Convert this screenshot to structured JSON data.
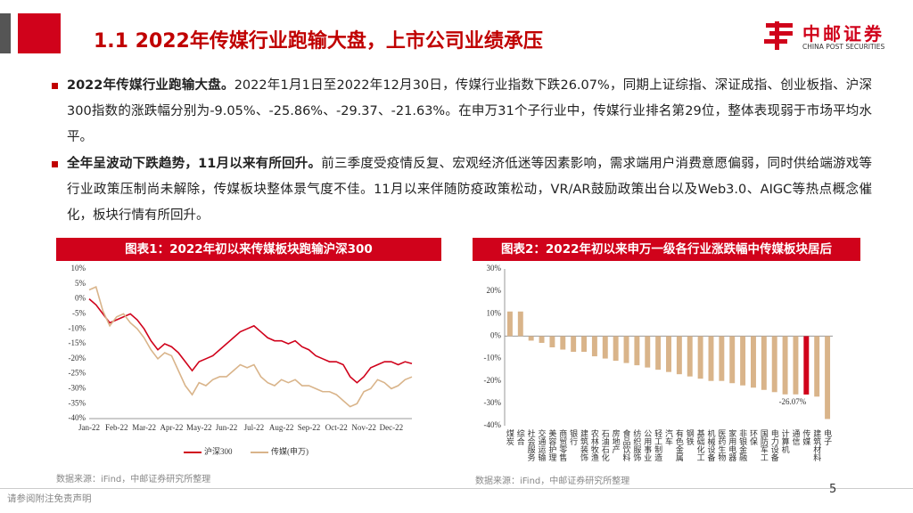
{
  "header": {
    "title": "1.1 2022年传媒行业跑输大盘，上市公司业绩承压",
    "logo_name": "中邮证券",
    "logo_sub": "CHINA POST SECURITIES"
  },
  "bullets": [
    {
      "bold": "2022年传媒行业跑输大盘。",
      "text": "2022年1月1日至2022年12月30日，传媒行业指数下跌26.07%，同期上证综指、深证成指、创业板指、沪深300指数的涨跌幅分别为-9.05%、-25.86%、-29.37、-21.63%。在申万31个子行业中，传媒行业排名第29位，整体表现弱于市场平均水平。"
    },
    {
      "bold": "全年呈波动下跌趋势，11月以来有所回升。",
      "text": "前三季度受疫情反复、宏观经济低迷等因素影响，需求端用户消费意愿偏弱，同时供给端游戏等行业政策压制尚未解除，传媒板块整体景气度不佳。11月以来伴随防疫政策松动，VR/AR鼓励政策出台以及Web3.0、AIGC等热点概念催化，板块行情有所回升。"
    }
  ],
  "chart_data": [
    {
      "type": "line",
      "title": "图表1：2022年初以来传媒板块跑输沪深300",
      "source": "数据来源：iFind，中邮证券研究所整理",
      "categories": [
        "Jan-22",
        null,
        null,
        null,
        "Feb-22",
        null,
        null,
        null,
        "Mar-22",
        null,
        null,
        null,
        "Apr-22",
        null,
        null,
        null,
        "May-22",
        null,
        null,
        null,
        "Jun-22",
        null,
        null,
        null,
        "Jul-22",
        null,
        null,
        null,
        "Aug-22",
        null,
        null,
        null,
        "Sep-22",
        null,
        null,
        null,
        "Oct-22",
        null,
        null,
        null,
        "Nov-22",
        null,
        null,
        null,
        "Dec-22",
        null,
        null,
        null
      ],
      "series": [
        {
          "name": "沪深300",
          "color": "#d0021b",
          "values": [
            0,
            -2,
            -5,
            -8,
            -7,
            -6,
            -5,
            -7,
            -10,
            -14,
            -17,
            -15,
            -16,
            -18,
            -21,
            -24,
            -21,
            -20,
            -19,
            -17,
            -15,
            -13,
            -11,
            -10,
            -9,
            -11,
            -13,
            -14,
            -14,
            -15,
            -14,
            -16,
            -17,
            -19,
            -20,
            -21,
            -21,
            -22,
            -26,
            -28,
            -26,
            -23,
            -22,
            -21,
            -21,
            -22,
            -21,
            -21.63
          ]
        },
        {
          "name": "传媒(申万)",
          "color": "#d9b48a",
          "values": [
            3,
            4,
            -4,
            -9,
            -6,
            -5,
            -8,
            -10,
            -13,
            -17,
            -20,
            -18,
            -19,
            -24,
            -29,
            -32,
            -28,
            -29,
            -27,
            -26,
            -26,
            -24,
            -22,
            -23,
            -22,
            -26,
            -28,
            -29,
            -27,
            -28,
            -27,
            -29,
            -29,
            -30,
            -31,
            -31,
            -32,
            -34,
            -36,
            -35,
            -31,
            -30,
            -27,
            -28,
            -30,
            -29,
            -27,
            -26.07
          ]
        }
      ],
      "ylim": [
        -40,
        10
      ],
      "yticks": [
        {
          "value": 10,
          "label": "10%"
        },
        {
          "value": 5,
          "label": "5%"
        },
        {
          "value": 0,
          "label": "0%"
        },
        {
          "value": -5,
          "label": "-5%"
        },
        {
          "value": -10,
          "label": "-10%"
        },
        {
          "value": -15,
          "label": "-15%"
        },
        {
          "value": -20,
          "label": "-20%"
        },
        {
          "value": -25,
          "label": "-25%"
        },
        {
          "value": -30,
          "label": "-30%"
        },
        {
          "value": -35,
          "label": "-35%"
        },
        {
          "value": -40,
          "label": "-40%"
        }
      ],
      "grid": false,
      "legend": "bottom"
    },
    {
      "type": "bar",
      "title": "图表2：2022年初以来申万一级各行业涨跌幅中传媒板块居后",
      "source": "数据来源：iFind，中邮证券研究所整理",
      "categories": [
        "煤炭",
        "综合",
        "社会服务",
        "交通运输",
        "美容护理",
        "商贸零售",
        "银行",
        "建筑装饰",
        "农林牧渔",
        "石油石化",
        "房地产",
        "食品饮料",
        "纺织服饰",
        "公用事业",
        "轻工制造",
        "汽车",
        "有色金属",
        "钢铁",
        "基础化工",
        "机械设备",
        "医药生物",
        "家用电器",
        "非银金融",
        "环保",
        "国防军工",
        "电力设备",
        "计算机",
        "通信",
        "传媒",
        "建筑材料",
        "电子"
      ],
      "values": [
        11,
        11,
        -2,
        -3,
        -5,
        -6,
        -7,
        -7,
        -9,
        -10,
        -11,
        -12,
        -13,
        -14,
        -15,
        -16,
        -17,
        -18,
        -19,
        -20,
        -20,
        -21,
        -22,
        -23,
        -24,
        -25,
        -26,
        -26,
        -26.07,
        -27,
        -37
      ],
      "value_labels": [
        null,
        null,
        null,
        null,
        null,
        null,
        null,
        null,
        null,
        null,
        null,
        null,
        null,
        null,
        null,
        null,
        null,
        null,
        null,
        null,
        null,
        null,
        null,
        null,
        null,
        null,
        null,
        null,
        "-26.07%",
        null,
        null
      ],
      "colors": [
        "#d9b48a",
        "#d9b48a",
        "#d9b48a",
        "#d9b48a",
        "#d9b48a",
        "#d9b48a",
        "#d9b48a",
        "#d9b48a",
        "#d9b48a",
        "#d9b48a",
        "#d9b48a",
        "#d9b48a",
        "#d9b48a",
        "#d9b48a",
        "#d9b48a",
        "#d9b48a",
        "#d9b48a",
        "#d9b48a",
        "#d9b48a",
        "#d9b48a",
        "#d9b48a",
        "#d9b48a",
        "#d9b48a",
        "#d9b48a",
        "#d9b48a",
        "#d9b48a",
        "#d9b48a",
        "#d9b48a",
        "#d0021b",
        "#d9b48a",
        "#d9b48a"
      ],
      "ylim": [
        -40,
        30
      ],
      "yticks": [
        {
          "value": 30,
          "label": "30%"
        },
        {
          "value": 20,
          "label": "20%"
        },
        {
          "value": 10,
          "label": "10%"
        },
        {
          "value": 0,
          "label": "0%"
        },
        {
          "value": -10,
          "label": "-10%"
        },
        {
          "value": -20,
          "label": "-20%"
        },
        {
          "value": -30,
          "label": "-30%"
        },
        {
          "value": -40,
          "label": "-40%"
        }
      ],
      "grid": false
    }
  ],
  "footer": {
    "disclaimer": "请参阅附注免责声明",
    "page": "5"
  }
}
